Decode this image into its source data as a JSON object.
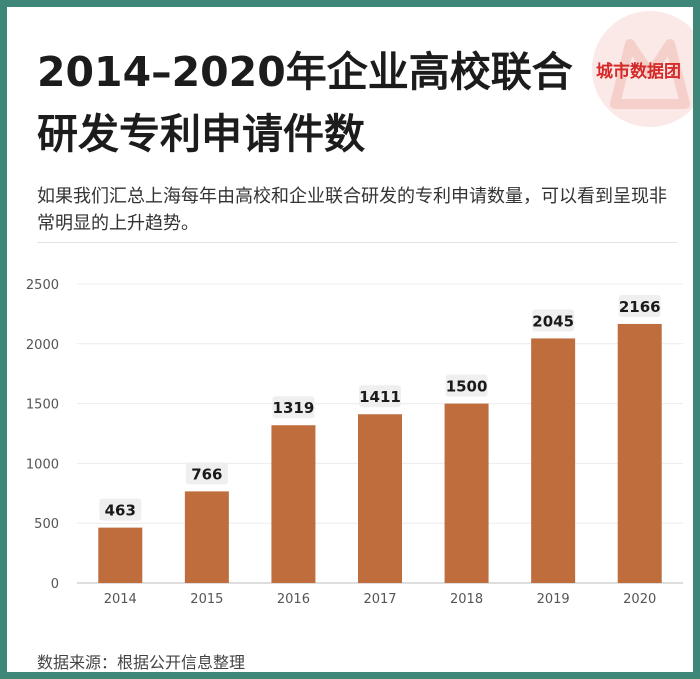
{
  "brand": {
    "name": "城市数据团",
    "accent_color": "#d42a2a"
  },
  "header": {
    "title": "2014–2020年企业高校联合研发专利申请件数",
    "subtitle": "如果我们汇总上海每年由高校和企业联合研发的专利申请数量，可以看到呈现非常明显的上升趋势。"
  },
  "footer": {
    "source": "数据来源：根据公开信息整理"
  },
  "chart_data": {
    "type": "bar",
    "title": "2014–2020年企业高校联合研发专利申请件数",
    "xlabel": "",
    "ylabel": "",
    "categories": [
      "2014",
      "2015",
      "2016",
      "2017",
      "2018",
      "2019",
      "2020"
    ],
    "values": [
      463,
      766,
      1319,
      1411,
      1500,
      2045,
      2166
    ],
    "ylim": [
      0,
      2500
    ],
    "yticks": [
      0,
      500,
      1000,
      1500,
      2000,
      2500
    ],
    "grid": true,
    "data_labels": true,
    "bar_color": "#bf6d3c",
    "label_bg_color": "#efefef"
  }
}
